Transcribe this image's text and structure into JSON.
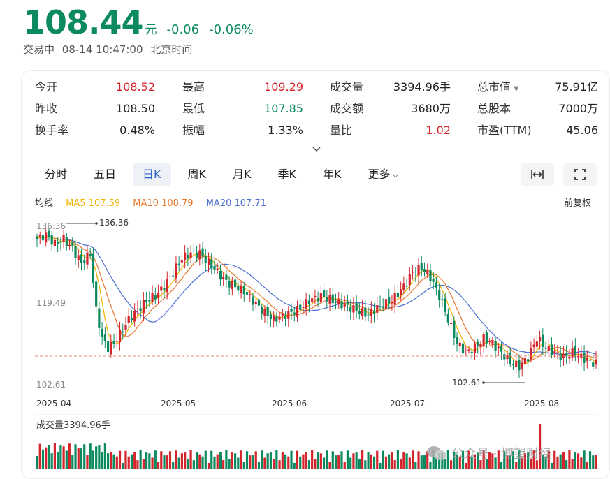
{
  "header": {
    "price": "108.44",
    "unit": "元",
    "change": "-0.06",
    "change_pct": "-0.06%",
    "status": "交易中",
    "datetime": "08-14 10:47:00",
    "timezone": "北京时间"
  },
  "stats": [
    {
      "label": "今开",
      "value": "108.52",
      "color": "red"
    },
    {
      "label": "最高",
      "value": "109.29",
      "color": "red"
    },
    {
      "label": "成交量",
      "value": "3394.96手",
      "color": "black"
    },
    {
      "label": "总市值",
      "value": "75.91亿",
      "color": "black"
    },
    {
      "label": "昨收",
      "value": "108.50",
      "color": "black"
    },
    {
      "label": "最低",
      "value": "107.85",
      "color": "green"
    },
    {
      "label": "成交额",
      "value": "3680万",
      "color": "black"
    },
    {
      "label": "总股本",
      "value": "7000万",
      "color": "black"
    },
    {
      "label": "换手率",
      "value": "0.48%",
      "color": "black"
    },
    {
      "label": "振幅",
      "value": "1.33%",
      "color": "black"
    },
    {
      "label": "量比",
      "value": "1.02",
      "color": "red"
    },
    {
      "label": "市盈(TTM)",
      "value": "45.06",
      "color": "black"
    }
  ],
  "tabs": [
    {
      "label": "分时"
    },
    {
      "label": "五日"
    },
    {
      "label": "日K"
    },
    {
      "label": "周K"
    },
    {
      "label": "月K"
    },
    {
      "label": "季K"
    },
    {
      "label": "年K"
    },
    {
      "label": "更多"
    }
  ],
  "active_tab": "日K",
  "ma": {
    "title": "均线",
    "ma5": "MA5 107.59",
    "ma10": "MA10 108.79",
    "ma20": "MA20 107.71",
    "adjust": "前复权"
  },
  "colors": {
    "up": "#d4242c",
    "down": "#0b8a60",
    "ma5": "#f0b400",
    "ma10": "#e8762d",
    "ma20": "#4a6fd1",
    "accent": "#2a63c6"
  },
  "chart_data": {
    "type": "candlestick",
    "y_ticks": [
      "136.36",
      "119.49",
      "102.61"
    ],
    "y_range": [
      102.61,
      136.36
    ],
    "x_ticks": [
      "2025-04",
      "2025-05",
      "2025-06",
      "2025-07",
      "2025-08"
    ],
    "annotations": {
      "max": "136.36",
      "min": "102.61"
    },
    "reference_price": 108.5,
    "volume_label": "成交量3394.96手"
  },
  "watermark": "公众号 · 博望财经"
}
